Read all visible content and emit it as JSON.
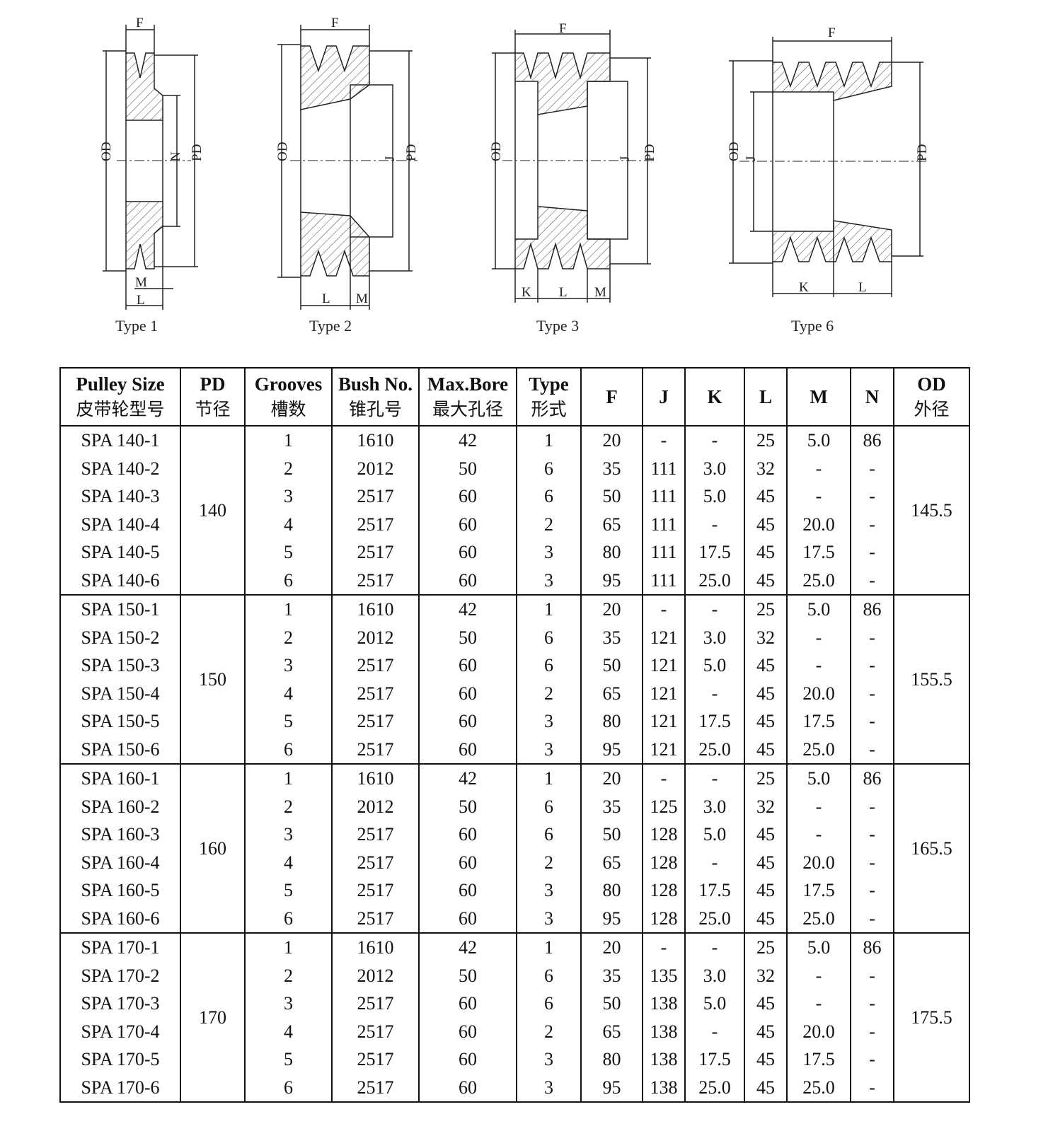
{
  "diagrams": [
    {
      "caption": "Type 1",
      "labels": {
        "F": "F",
        "OD": "OD",
        "N": "N",
        "PD": "PD",
        "M": "M",
        "L": "L"
      }
    },
    {
      "caption": "Type 2",
      "labels": {
        "F": "F",
        "OD": "OD",
        "J": "J",
        "PD": "PD",
        "L": "L",
        "M": "M"
      }
    },
    {
      "caption": "Type 3",
      "labels": {
        "F": "F",
        "OD": "OD",
        "J": "J",
        "PD": "PD",
        "K": "K",
        "L": "L",
        "M": "M"
      }
    },
    {
      "caption": "Type 6",
      "labels": {
        "F": "F",
        "OD": "OD",
        "J": "J",
        "PD": "PD",
        "K": "K",
        "L": "L"
      }
    }
  ],
  "table": {
    "headers": [
      {
        "en": "Pulley Size",
        "zh": "皮带轮型号"
      },
      {
        "en": "PD",
        "zh": "节径"
      },
      {
        "en": "Grooves",
        "zh": "槽数"
      },
      {
        "en": "Bush No.",
        "zh": "锥孔号"
      },
      {
        "en": "Max.Bore",
        "zh": "最大孔径"
      },
      {
        "en": "Type",
        "zh": "形式"
      },
      {
        "en": "F",
        "zh": ""
      },
      {
        "en": "J",
        "zh": ""
      },
      {
        "en": "K",
        "zh": ""
      },
      {
        "en": "L",
        "zh": ""
      },
      {
        "en": "M",
        "zh": ""
      },
      {
        "en": "N",
        "zh": ""
      },
      {
        "en": "OD",
        "zh": "外径"
      }
    ],
    "groups": [
      {
        "pd": "140",
        "od": "145.5",
        "rows": [
          [
            "SPA 140-1",
            "1",
            "1610",
            "42",
            "1",
            "20",
            "-",
            "-",
            "25",
            "5.0",
            "86"
          ],
          [
            "SPA 140-2",
            "2",
            "2012",
            "50",
            "6",
            "35",
            "111",
            "3.0",
            "32",
            "-",
            "-"
          ],
          [
            "SPA 140-3",
            "3",
            "2517",
            "60",
            "6",
            "50",
            "111",
            "5.0",
            "45",
            "-",
            "-"
          ],
          [
            "SPA 140-4",
            "4",
            "2517",
            "60",
            "2",
            "65",
            "111",
            "-",
            "45",
            "20.0",
            "-"
          ],
          [
            "SPA 140-5",
            "5",
            "2517",
            "60",
            "3",
            "80",
            "111",
            "17.5",
            "45",
            "17.5",
            "-"
          ],
          [
            "SPA 140-6",
            "6",
            "2517",
            "60",
            "3",
            "95",
            "111",
            "25.0",
            "45",
            "25.0",
            "-"
          ]
        ]
      },
      {
        "pd": "150",
        "od": "155.5",
        "rows": [
          [
            "SPA 150-1",
            "1",
            "1610",
            "42",
            "1",
            "20",
            "-",
            "-",
            "25",
            "5.0",
            "86"
          ],
          [
            "SPA 150-2",
            "2",
            "2012",
            "50",
            "6",
            "35",
            "121",
            "3.0",
            "32",
            "-",
            "-"
          ],
          [
            "SPA 150-3",
            "3",
            "2517",
            "60",
            "6",
            "50",
            "121",
            "5.0",
            "45",
            "-",
            "-"
          ],
          [
            "SPA 150-4",
            "4",
            "2517",
            "60",
            "2",
            "65",
            "121",
            "-",
            "45",
            "20.0",
            "-"
          ],
          [
            "SPA 150-5",
            "5",
            "2517",
            "60",
            "3",
            "80",
            "121",
            "17.5",
            "45",
            "17.5",
            "-"
          ],
          [
            "SPA 150-6",
            "6",
            "2517",
            "60",
            "3",
            "95",
            "121",
            "25.0",
            "45",
            "25.0",
            "-"
          ]
        ]
      },
      {
        "pd": "160",
        "od": "165.5",
        "rows": [
          [
            "SPA 160-1",
            "1",
            "1610",
            "42",
            "1",
            "20",
            "-",
            "-",
            "25",
            "5.0",
            "86"
          ],
          [
            "SPA 160-2",
            "2",
            "2012",
            "50",
            "6",
            "35",
            "125",
            "3.0",
            "32",
            "-",
            "-"
          ],
          [
            "SPA 160-3",
            "3",
            "2517",
            "60",
            "6",
            "50",
            "128",
            "5.0",
            "45",
            "-",
            "-"
          ],
          [
            "SPA 160-4",
            "4",
            "2517",
            "60",
            "2",
            "65",
            "128",
            "-",
            "45",
            "20.0",
            "-"
          ],
          [
            "SPA 160-5",
            "5",
            "2517",
            "60",
            "3",
            "80",
            "128",
            "17.5",
            "45",
            "17.5",
            "-"
          ],
          [
            "SPA 160-6",
            "6",
            "2517",
            "60",
            "3",
            "95",
            "128",
            "25.0",
            "45",
            "25.0",
            "-"
          ]
        ]
      },
      {
        "pd": "170",
        "od": "175.5",
        "rows": [
          [
            "SPA 170-1",
            "1",
            "1610",
            "42",
            "1",
            "20",
            "-",
            "-",
            "25",
            "5.0",
            "86"
          ],
          [
            "SPA 170-2",
            "2",
            "2012",
            "50",
            "6",
            "35",
            "135",
            "3.0",
            "32",
            "-",
            "-"
          ],
          [
            "SPA 170-3",
            "3",
            "2517",
            "60",
            "6",
            "50",
            "138",
            "5.0",
            "45",
            "-",
            "-"
          ],
          [
            "SPA 170-4",
            "4",
            "2517",
            "60",
            "2",
            "65",
            "138",
            "-",
            "45",
            "20.0",
            "-"
          ],
          [
            "SPA 170-5",
            "5",
            "2517",
            "60",
            "3",
            "80",
            "138",
            "17.5",
            "45",
            "17.5",
            "-"
          ],
          [
            "SPA 170-6",
            "6",
            "2517",
            "60",
            "3",
            "95",
            "138",
            "25.0",
            "45",
            "25.0",
            "-"
          ]
        ]
      }
    ]
  }
}
